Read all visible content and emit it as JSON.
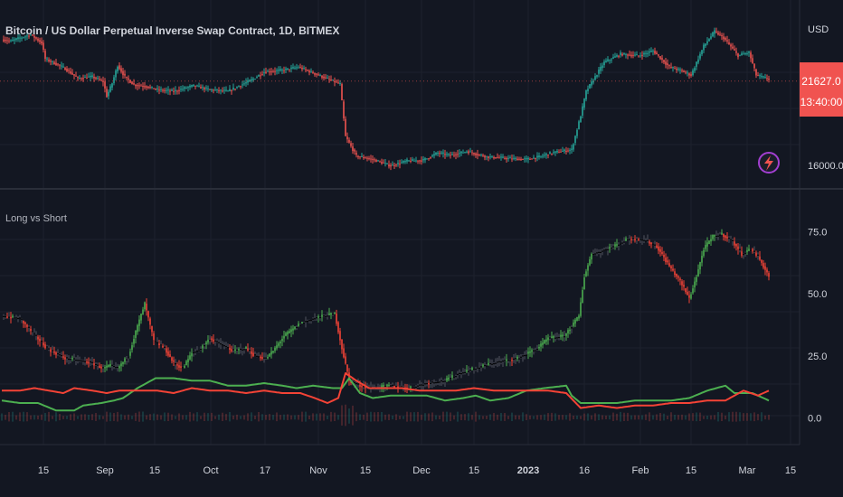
{
  "header": {
    "title": "Bitcoin / US Dollar Perpetual Inverse Swap Contract, 1D, BITMEX"
  },
  "price_axis": {
    "currency": "USD",
    "price_badge": "21627.0",
    "countdown": "13:40:00",
    "tick_label": "16000.0"
  },
  "indicator": {
    "title": "Long vs Short"
  },
  "colors": {
    "up": "#26a69a",
    "down": "#ef5350",
    "long_line": "#4caf50",
    "short_line": "#f44336",
    "background": "#131722",
    "badge": "#f05350"
  },
  "flash_icon": "lightning-bolt-icon",
  "chart_data": [
    {
      "type": "candlestick",
      "title": "Bitcoin / US Dollar Perpetual Inverse Swap Contract, 1D, BITMEX",
      "ylabel": "USD",
      "y_tick_labels": [
        "16000.0"
      ],
      "last_price": 21627.0,
      "ylim": [
        15200,
        25800
      ],
      "series": [
        {
          "name": "price",
          "key_points": [
            [
              0,
              24200
            ],
            [
              5,
              24100
            ],
            [
              10,
              24300
            ],
            [
              16,
              24500
            ],
            [
              22,
              24000
            ],
            [
              24,
              23000
            ],
            [
              30,
              22700
            ],
            [
              35,
              22400
            ],
            [
              42,
              21800
            ],
            [
              50,
              21900
            ],
            [
              56,
              21600
            ],
            [
              58,
              20700
            ],
            [
              61,
              21500
            ],
            [
              64,
              22600
            ],
            [
              68,
              21900
            ],
            [
              73,
              21400
            ],
            [
              80,
              21300
            ],
            [
              86,
              21100
            ],
            [
              95,
              21000
            ],
            [
              106,
              21350
            ],
            [
              115,
              21100
            ],
            [
              125,
              21000
            ],
            [
              138,
              21700
            ],
            [
              145,
              22200
            ],
            [
              155,
              22300
            ],
            [
              164,
              22500
            ],
            [
              175,
              22000
            ],
            [
              187,
              21450
            ],
            [
              190,
              18200
            ],
            [
              196,
              17000
            ],
            [
              205,
              16800
            ],
            [
              215,
              16400
            ],
            [
              224,
              16700
            ],
            [
              233,
              16750
            ],
            [
              241,
              17200
            ],
            [
              248,
              17050
            ],
            [
              257,
              17300
            ],
            [
              263,
              17100
            ],
            [
              269,
              16950
            ],
            [
              281,
              16850
            ],
            [
              290,
              16800
            ],
            [
              297,
              16950
            ],
            [
              304,
              17200
            ],
            [
              315,
              17400
            ],
            [
              320,
              19500
            ],
            [
              323,
              21000
            ],
            [
              333,
              22800
            ],
            [
              342,
              23300
            ],
            [
              352,
              23200
            ],
            [
              360,
              23500
            ],
            [
              369,
              22500
            ],
            [
              375,
              22300
            ],
            [
              381,
              22000
            ],
            [
              388,
              23800
            ],
            [
              394,
              24700
            ],
            [
              399,
              24300
            ],
            [
              407,
              23200
            ],
            [
              413,
              23400
            ],
            [
              417,
              22000
            ],
            [
              424,
              21750
            ]
          ]
        }
      ]
    },
    {
      "type": "line",
      "title": "Long vs Short",
      "y_tick_labels": [
        "75.0",
        "50.0",
        "25.0",
        "0.0"
      ],
      "ylim": [
        -10,
        90
      ],
      "x_tick_labels": [
        "15",
        "Sep",
        "15",
        "Oct",
        "17",
        "Nov",
        "15",
        "Dec",
        "15",
        "2023",
        "16",
        "Feb",
        "15",
        "Mar",
        "15"
      ],
      "series": [
        {
          "name": "ratio",
          "key_points": [
            [
              0,
              41
            ],
            [
              10,
              40
            ],
            [
              16,
              35
            ],
            [
              25,
              28
            ],
            [
              35,
              24
            ],
            [
              44,
              23
            ],
            [
              50,
              22
            ],
            [
              56,
              20
            ],
            [
              60,
              21
            ],
            [
              64,
              20
            ],
            [
              70,
              25
            ],
            [
              75,
              37
            ],
            [
              79,
              46
            ],
            [
              84,
              31
            ],
            [
              90,
              28
            ],
            [
              95,
              22
            ],
            [
              100,
              20
            ],
            [
              105,
              26
            ],
            [
              110,
              28
            ],
            [
              115,
              32
            ],
            [
              120,
              30
            ],
            [
              128,
              27
            ],
            [
              135,
              28
            ],
            [
              140,
              25
            ],
            [
              146,
              24
            ],
            [
              150,
              27
            ],
            [
              156,
              33
            ],
            [
              165,
              38
            ],
            [
              172,
              40
            ],
            [
              184,
              42
            ],
            [
              188,
              28
            ],
            [
              192,
              15
            ],
            [
              198,
              13
            ],
            [
              205,
              12
            ],
            [
              215,
              13
            ],
            [
              225,
              12
            ],
            [
              235,
              14
            ],
            [
              245,
              15
            ],
            [
              253,
              18
            ],
            [
              262,
              20
            ],
            [
              271,
              22
            ],
            [
              285,
              24
            ],
            [
              296,
              28
            ],
            [
              302,
              32
            ],
            [
              311,
              33
            ],
            [
              319,
              41
            ],
            [
              322,
              57
            ],
            [
              326,
              66
            ],
            [
              331,
              67
            ],
            [
              338,
              69
            ],
            [
              346,
              72
            ],
            [
              352,
              72
            ],
            [
              357,
              71
            ],
            [
              362,
              69
            ],
            [
              370,
              60
            ],
            [
              375,
              55
            ],
            [
              380,
              48
            ],
            [
              384,
              57
            ],
            [
              388,
              68
            ],
            [
              393,
              73
            ],
            [
              398,
              74
            ],
            [
              404,
              71
            ],
            [
              409,
              66
            ],
            [
              414,
              68
            ],
            [
              418,
              65
            ],
            [
              424,
              57
            ]
          ]
        },
        {
          "name": "long",
          "key_points": [
            [
              0,
              7
            ],
            [
              10,
              6
            ],
            [
              20,
              6
            ],
            [
              30,
              3
            ],
            [
              40,
              3
            ],
            [
              45,
              5
            ],
            [
              55,
              6
            ],
            [
              62,
              7
            ],
            [
              67,
              8
            ],
            [
              75,
              12
            ],
            [
              85,
              16
            ],
            [
              95,
              16
            ],
            [
              105,
              15
            ],
            [
              115,
              15
            ],
            [
              125,
              13
            ],
            [
              135,
              13
            ],
            [
              145,
              14
            ],
            [
              155,
              13
            ],
            [
              163,
              12
            ],
            [
              172,
              13
            ],
            [
              183,
              12
            ],
            [
              188,
              12
            ],
            [
              192,
              16
            ],
            [
              198,
              10
            ],
            [
              205,
              8
            ],
            [
              215,
              9
            ],
            [
              225,
              9
            ],
            [
              235,
              9
            ],
            [
              245,
              7
            ],
            [
              255,
              8
            ],
            [
              262,
              9
            ],
            [
              270,
              7
            ],
            [
              280,
              8
            ],
            [
              290,
              11
            ],
            [
              300,
              12
            ],
            [
              312,
              13
            ],
            [
              315,
              9
            ],
            [
              320,
              6
            ],
            [
              330,
              6
            ],
            [
              340,
              6
            ],
            [
              350,
              7
            ],
            [
              360,
              7
            ],
            [
              370,
              7
            ],
            [
              380,
              8
            ],
            [
              390,
              11
            ],
            [
              400,
              13
            ],
            [
              405,
              10
            ],
            [
              415,
              10
            ],
            [
              424,
              7
            ]
          ]
        },
        {
          "name": "short",
          "key_points": [
            [
              0,
              11
            ],
            [
              10,
              11
            ],
            [
              18,
              12
            ],
            [
              26,
              11
            ],
            [
              34,
              10
            ],
            [
              40,
              12
            ],
            [
              50,
              11
            ],
            [
              58,
              10
            ],
            [
              65,
              11
            ],
            [
              76,
              11
            ],
            [
              86,
              11
            ],
            [
              95,
              10
            ],
            [
              105,
              12
            ],
            [
              115,
              11
            ],
            [
              125,
              11
            ],
            [
              135,
              10
            ],
            [
              145,
              11
            ],
            [
              155,
              10
            ],
            [
              165,
              10
            ],
            [
              173,
              8
            ],
            [
              180,
              6
            ],
            [
              186,
              8
            ],
            [
              190,
              18
            ],
            [
              196,
              15
            ],
            [
              203,
              12
            ],
            [
              211,
              12
            ],
            [
              221,
              12
            ],
            [
              231,
              11
            ],
            [
              241,
              11
            ],
            [
              251,
              11
            ],
            [
              261,
              12
            ],
            [
              272,
              11
            ],
            [
              282,
              11
            ],
            [
              292,
              11
            ],
            [
              302,
              11
            ],
            [
              312,
              10
            ],
            [
              320,
              4
            ],
            [
              330,
              5
            ],
            [
              340,
              4
            ],
            [
              350,
              5
            ],
            [
              360,
              5
            ],
            [
              370,
              6
            ],
            [
              380,
              6
            ],
            [
              390,
              7
            ],
            [
              400,
              7
            ],
            [
              410,
              11
            ],
            [
              418,
              9
            ],
            [
              424,
              11
            ]
          ]
        }
      ]
    }
  ]
}
